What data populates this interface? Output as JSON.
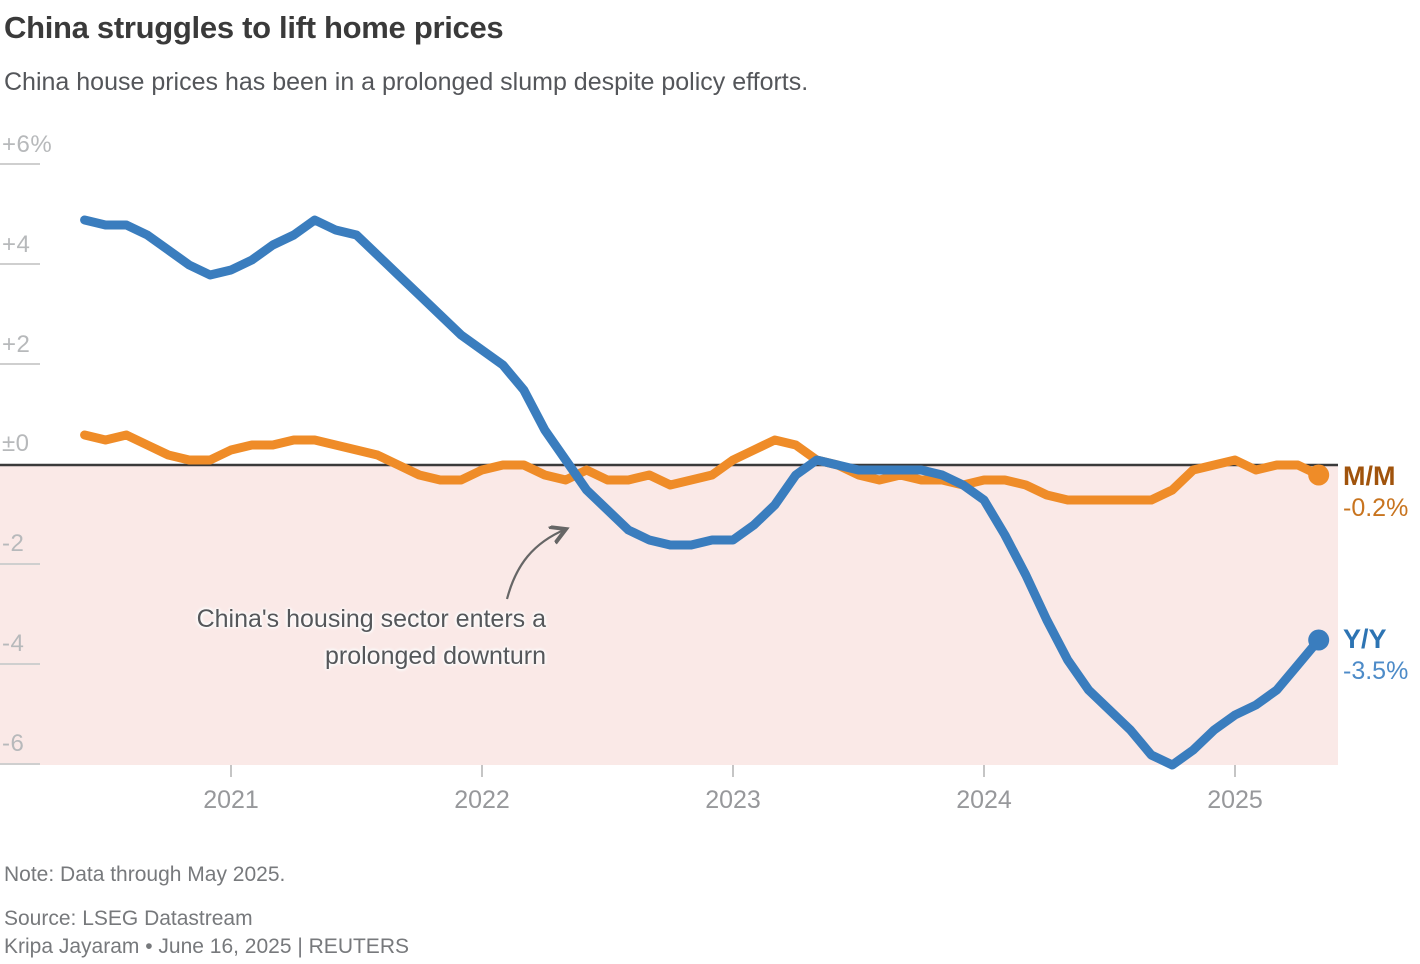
{
  "header": {
    "title": "China struggles to lift home prices",
    "subtitle": "China house prices has been in a prolonged slump despite policy efforts."
  },
  "annotation": {
    "line1": "China's housing sector enters a",
    "line2": "prolonged downturn"
  },
  "series_labels": {
    "mm": {
      "label": "M/M",
      "value": "-0.2%"
    },
    "yy": {
      "label": "Y/Y",
      "value": "-3.5%"
    }
  },
  "footer": {
    "note": "Note: Data through May 2025.",
    "source": "Source: LSEG Datastream",
    "byline": "Kripa Jayaram • June 16, 2025 | REUTERS"
  },
  "colors": {
    "yy_line": "#3a7dbe",
    "mm_line": "#ef8c28",
    "shade": "#fae9e7",
    "zero_line": "#3a3a3a",
    "yy_label": "#2d74b3",
    "yy_value": "#4d8bc8",
    "mm_label": "#a0530c",
    "mm_value": "#c8741f",
    "annotation_arrow": "#666666"
  },
  "chart_data": {
    "type": "line",
    "title": "China struggles to lift home prices",
    "subtitle": "China house prices has been in a prolonged slump despite policy efforts.",
    "x_unit": "month",
    "x_start": "2020-06",
    "x_end": "2025-05",
    "xticks": [
      "2021",
      "2022",
      "2023",
      "2024",
      "2025"
    ],
    "yticks": [
      "+6%",
      "+4",
      "+2",
      "±0",
      "-2",
      "-4",
      "-6"
    ],
    "ylim": [
      -6.2,
      6
    ],
    "grid": "short left tick dashes only, dark zero baseline, pink shading below zero",
    "legend_position": "right edge, at line ends",
    "series": [
      {
        "name": "Y/Y",
        "color": "#3a7dbe",
        "end_label": "Y/Y -3.5%",
        "values": [
          4.9,
          4.8,
          4.8,
          4.6,
          4.3,
          4.0,
          3.8,
          3.9,
          4.1,
          4.4,
          4.6,
          4.9,
          4.7,
          4.6,
          4.2,
          3.8,
          3.4,
          3.0,
          2.6,
          2.3,
          2.0,
          1.5,
          0.7,
          0.1,
          -0.5,
          -0.9,
          -1.3,
          -1.5,
          -1.6,
          -1.6,
          -1.5,
          -1.5,
          -1.2,
          -0.8,
          -0.2,
          0.1,
          0.0,
          -0.1,
          -0.1,
          -0.1,
          -0.1,
          -0.2,
          -0.4,
          -0.7,
          -1.4,
          -2.2,
          -3.1,
          -3.9,
          -4.5,
          -4.9,
          -5.3,
          -5.8,
          -6.0,
          -5.7,
          -5.3,
          -5.0,
          -4.8,
          -4.5,
          -4.0,
          -3.5
        ]
      },
      {
        "name": "M/M",
        "color": "#ef8c28",
        "end_label": "M/M -0.2%",
        "values": [
          0.6,
          0.5,
          0.6,
          0.4,
          0.2,
          0.1,
          0.1,
          0.3,
          0.4,
          0.4,
          0.5,
          0.5,
          0.4,
          0.3,
          0.2,
          0.0,
          -0.2,
          -0.3,
          -0.3,
          -0.1,
          0.0,
          0.0,
          -0.2,
          -0.3,
          -0.1,
          -0.3,
          -0.3,
          -0.2,
          -0.4,
          -0.3,
          -0.2,
          0.1,
          0.3,
          0.5,
          0.4,
          0.1,
          0.0,
          -0.2,
          -0.3,
          -0.2,
          -0.3,
          -0.3,
          -0.4,
          -0.3,
          -0.3,
          -0.4,
          -0.6,
          -0.7,
          -0.7,
          -0.7,
          -0.7,
          -0.7,
          -0.5,
          -0.1,
          0.0,
          0.1,
          -0.1,
          0.0,
          0.0,
          -0.2
        ]
      }
    ],
    "annotation": "China's housing sector enters a prolonged downturn"
  }
}
